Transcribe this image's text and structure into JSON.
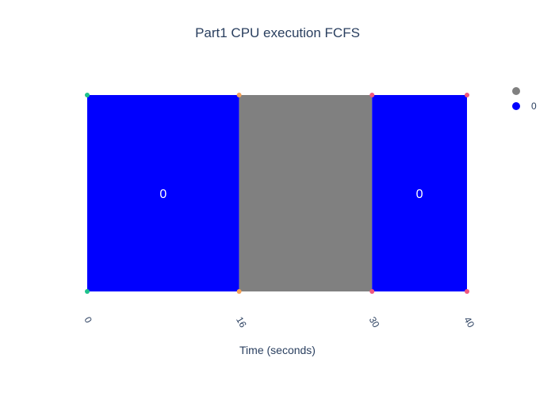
{
  "chart_data": {
    "type": "bar",
    "title": "Part1 CPU execution FCFS",
    "xlabel": "Time (seconds)",
    "ylabel": "",
    "xlim": [
      0,
      40
    ],
    "tick_values": [
      0,
      16,
      30,
      40
    ],
    "tick_labels": [
      "0",
      "16",
      "30",
      "40"
    ],
    "grid": false,
    "legend_position": "top-right",
    "segments": [
      {
        "label": "0",
        "start": 0,
        "end": 16,
        "color": "#0000ff"
      },
      {
        "label": "",
        "start": 16,
        "end": 30,
        "color": "#808080"
      },
      {
        "label": "0",
        "start": 30,
        "end": 40,
        "color": "#0000ff"
      }
    ],
    "legend": [
      {
        "name": "",
        "color": "#808080"
      },
      {
        "name": "0",
        "color": "#0000ff"
      }
    ],
    "boundary_markers": [
      {
        "x": 0,
        "color": "#1ec28b"
      },
      {
        "x": 16,
        "color": "#f4a259"
      },
      {
        "x": 30,
        "color": "#f0587e"
      },
      {
        "x": 40,
        "color": "#f0587e"
      }
    ]
  }
}
